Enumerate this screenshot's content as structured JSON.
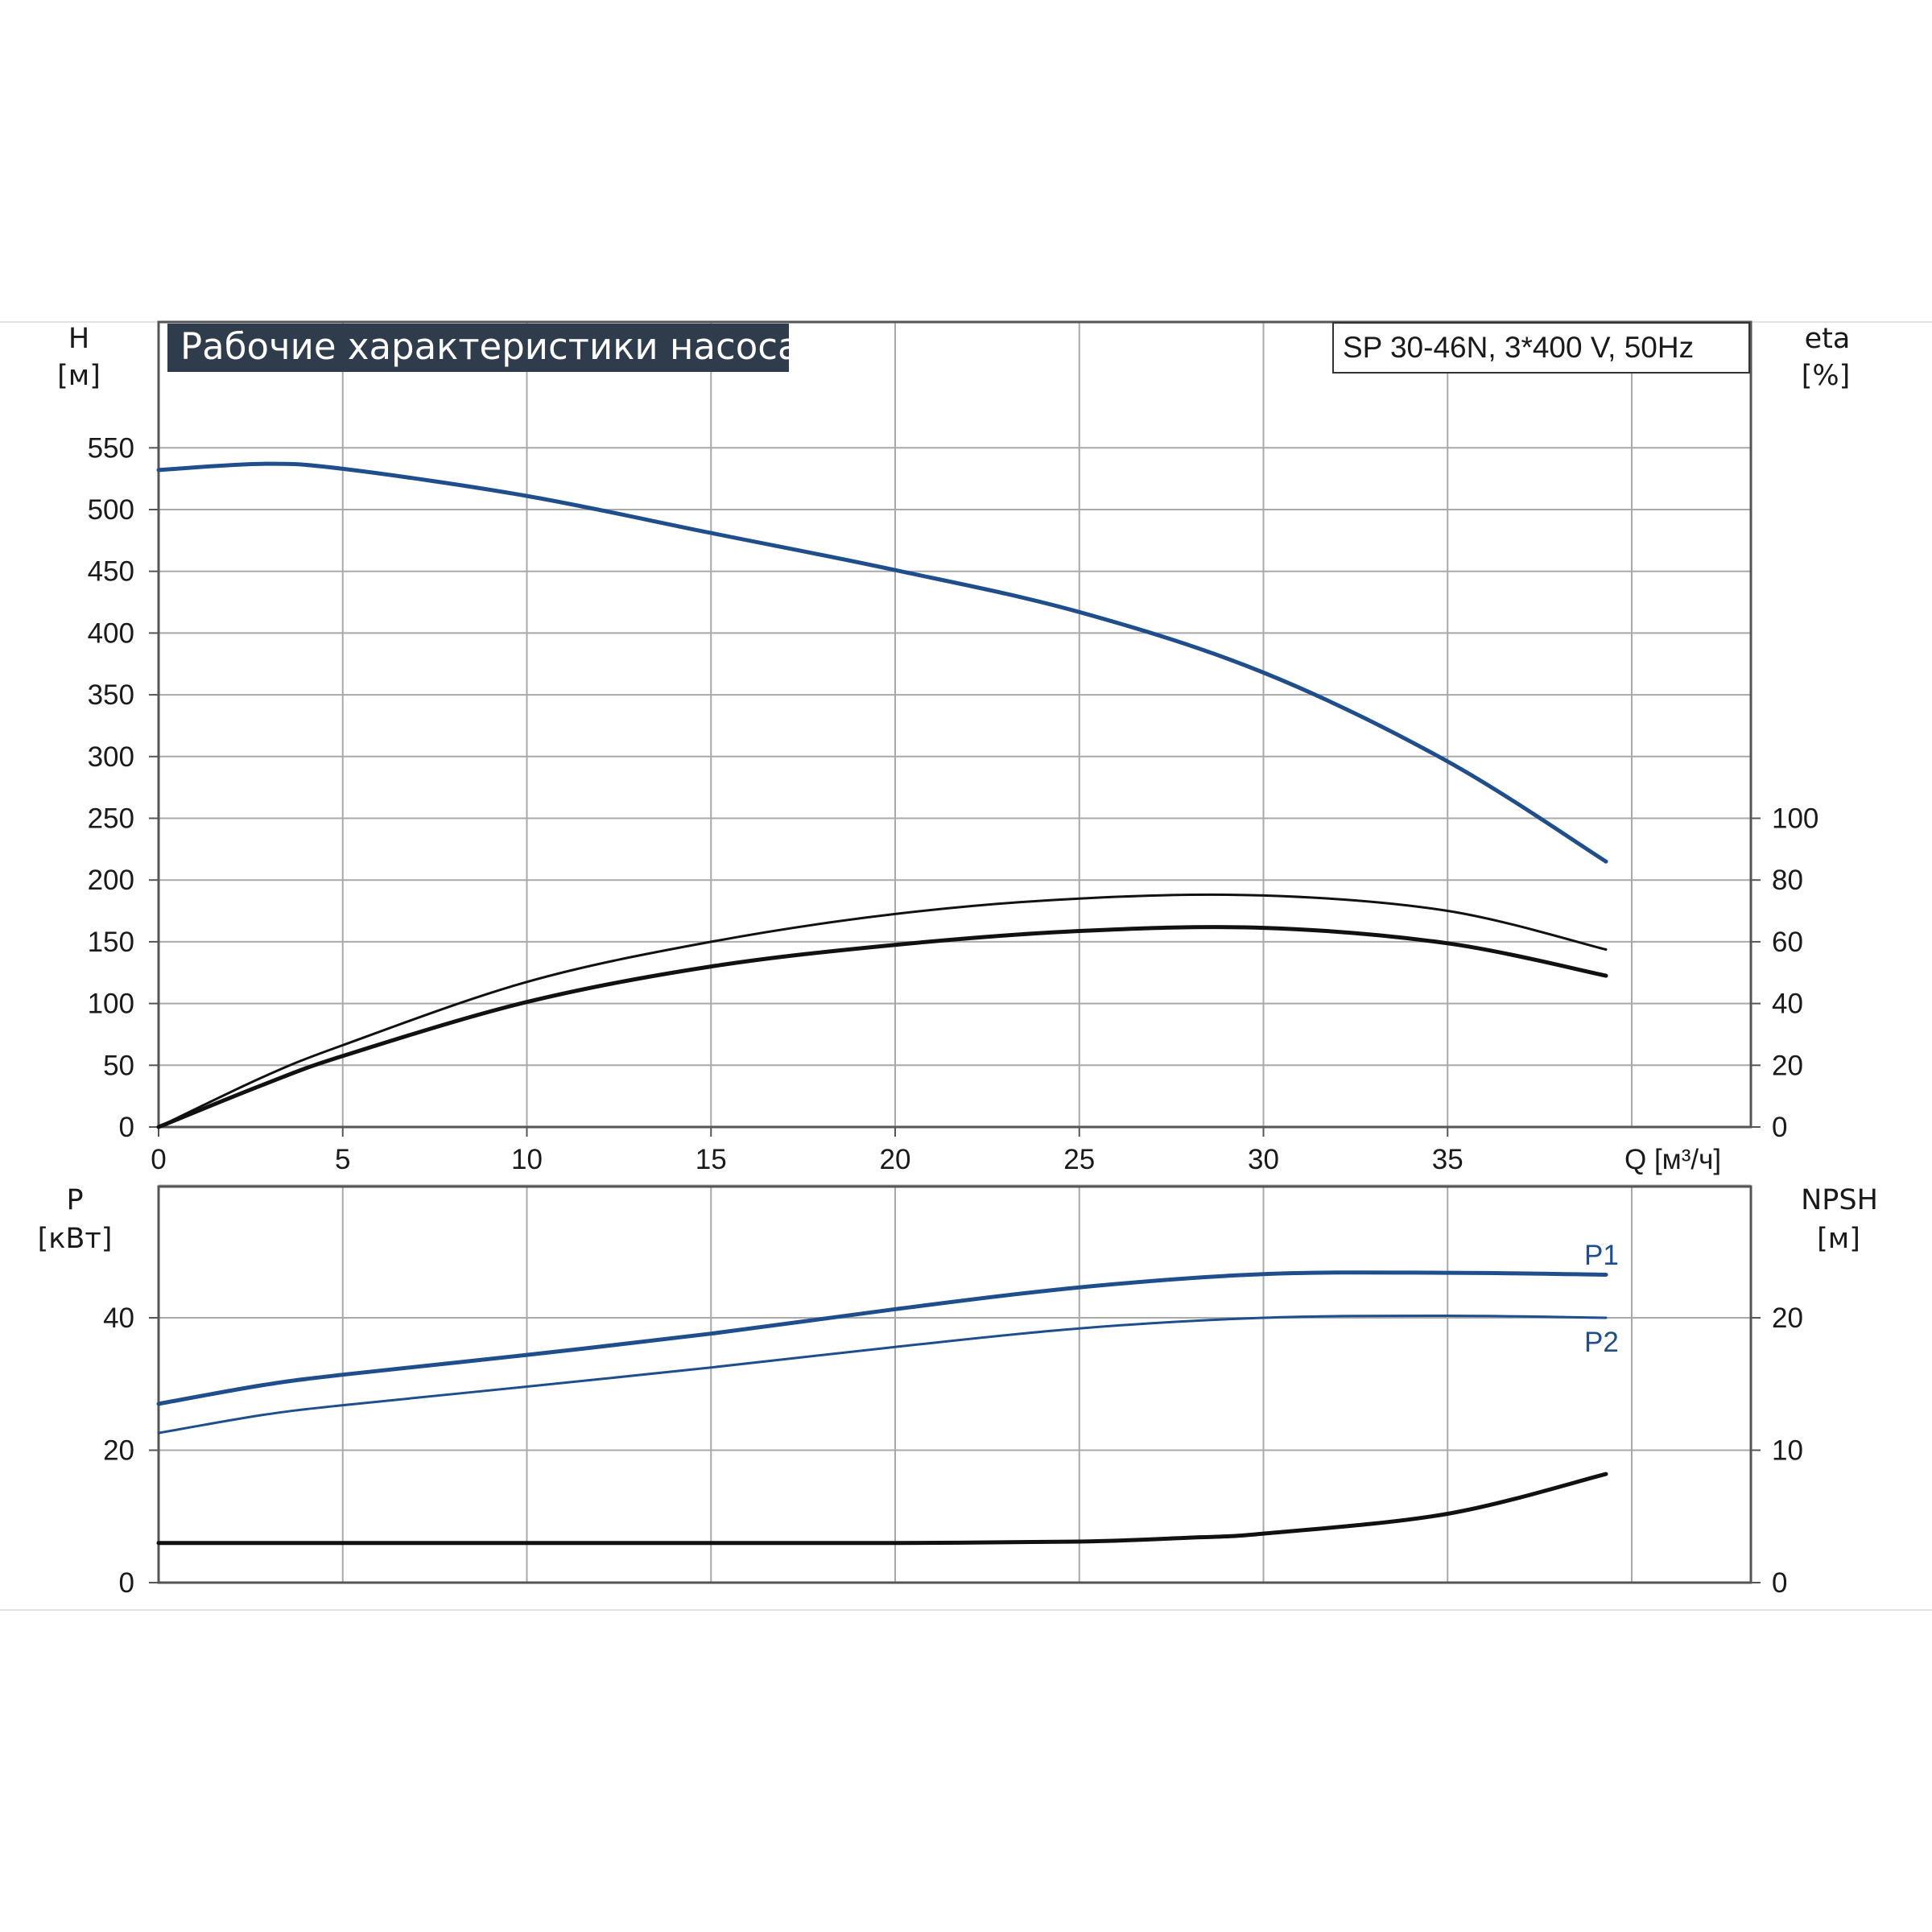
{
  "title": "Рабочие характеристики насоса",
  "model": "SP 30-46N, 3*400 V, 50Hz",
  "colors": {
    "blue": "#1f4e8c",
    "black": "#111111",
    "grid": "#a9a9a9",
    "title_bg": "#2e3c4c"
  },
  "chart_data": [
    {
      "type": "line",
      "xlabel": "Q [м³/ч]",
      "x_ticks": [
        "0",
        "5",
        "10",
        "15",
        "20",
        "25",
        "30",
        "35"
      ],
      "xlim": [
        0,
        40
      ],
      "ylabel_left": [
        "H",
        "[м]"
      ],
      "ylabel_right": [
        "eta",
        "[%]"
      ],
      "ylim_left": [
        0,
        600
      ],
      "ylim_right": [
        0,
        240
      ],
      "y_ticks_left": [
        "0",
        "50",
        "100",
        "150",
        "200",
        "250",
        "300",
        "350",
        "400",
        "450",
        "500",
        "550"
      ],
      "y_ticks_right": [
        "0",
        "20",
        "40",
        "60",
        "80",
        "100"
      ],
      "grid": true,
      "series": [
        {
          "axis": "left",
          "color": "blue",
          "x": [
            0,
            2.8,
            5,
            10,
            15,
            20,
            25,
            30,
            35,
            39.3
          ],
          "y": [
            532,
            537,
            533,
            511,
            481,
            451,
            417,
            368,
            296,
            215
          ]
        },
        {
          "axis": "right",
          "color": "black",
          "x": [
            0,
            2.8,
            5,
            10,
            15,
            20,
            25,
            30,
            35,
            39.3
          ],
          "y": [
            0,
            16,
            26.5,
            47,
            60,
            69,
            74,
            75,
            70,
            57.5
          ]
        },
        {
          "axis": "right",
          "color": "black",
          "x": [
            0,
            2.8,
            5,
            10,
            15,
            20,
            25,
            30,
            35,
            39.3
          ],
          "y": [
            0,
            13.5,
            23,
            40.5,
            52,
            59,
            63.5,
            64.5,
            59.5,
            49
          ]
        }
      ]
    },
    {
      "type": "line",
      "ylabel_left": [
        "P",
        "[кВт]"
      ],
      "ylabel_right": [
        "NPSH",
        "[м]"
      ],
      "xlim": [
        0,
        40
      ],
      "ylim_left": [
        0,
        60
      ],
      "ylim_right": [
        0,
        30
      ],
      "y_ticks_left": [
        "0",
        "20",
        "40"
      ],
      "y_ticks_right": [
        "0",
        "10",
        "20"
      ],
      "grid": true,
      "series": [
        {
          "name": "P1",
          "axis": "left",
          "color": "blue",
          "x": [
            0,
            2.8,
            5,
            10,
            15,
            20,
            25,
            30,
            35,
            39.3
          ],
          "y": [
            27,
            29.8,
            31.4,
            34.4,
            37.6,
            41.3,
            44.6,
            46.6,
            46.8,
            46.5
          ]
        },
        {
          "name": "P2",
          "axis": "left",
          "color": "blue",
          "x": [
            0,
            2.8,
            5,
            10,
            15,
            20,
            25,
            30,
            35,
            39.3
          ],
          "y": [
            22.6,
            25.3,
            26.8,
            29.6,
            32.5,
            35.6,
            38.4,
            40,
            40.3,
            40
          ]
        },
        {
          "axis": "right",
          "color": "black",
          "x": [
            0,
            2.8,
            5,
            10,
            15,
            20,
            25,
            28,
            30,
            35,
            39.3
          ],
          "y": [
            3,
            3,
            3,
            3,
            3,
            3,
            3.1,
            3.4,
            3.7,
            5.2,
            8.2
          ]
        }
      ]
    }
  ]
}
